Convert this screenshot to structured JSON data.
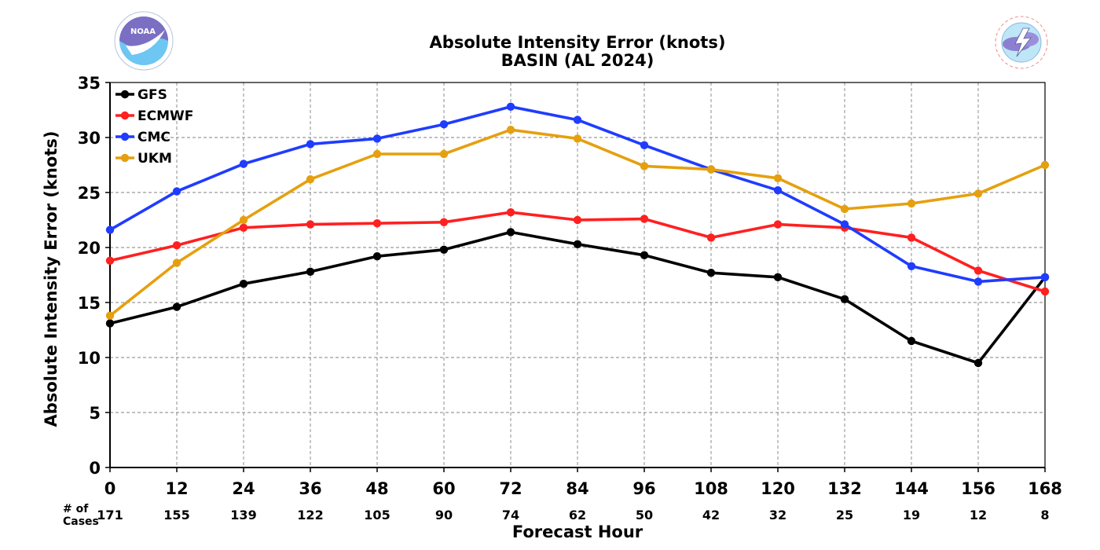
{
  "title": "Absolute Intensity Error (knots)",
  "subtitle": "BASIN (AL 2024)",
  "logos": {
    "left": {
      "icon": "noaa-logo",
      "wordmark": "NOAA",
      "ring_text": "NATIONAL OCEANIC AND ATMOSPHERIC ADMINISTRATION · U.S. DEPARTMENT OF COMMERCE"
    },
    "right": {
      "icon": "nws-logo",
      "ring_text": "NATIONAL WEATHER SERVICE"
    }
  },
  "cases_header_line1": "# of",
  "cases_header_line2": "Cases",
  "chart_data": {
    "type": "line",
    "title": "Absolute Intensity Error (knots)",
    "subtitle": "BASIN (AL 2024)",
    "xlabel": "Forecast Hour",
    "ylabel": "Absolute Intensity Error (knots)",
    "x": [
      0,
      12,
      24,
      36,
      48,
      60,
      72,
      84,
      96,
      108,
      120,
      132,
      144,
      156,
      168
    ],
    "xlim": [
      0,
      168
    ],
    "ylim": [
      0,
      35
    ],
    "yticks": [
      0,
      5,
      10,
      15,
      20,
      25,
      30,
      35
    ],
    "cases": [
      171,
      155,
      139,
      122,
      105,
      90,
      74,
      62,
      50,
      42,
      32,
      25,
      19,
      12,
      8
    ],
    "grid": true,
    "legend_position": "top-left",
    "series": [
      {
        "name": "GFS",
        "color": "#000000",
        "values": [
          13.1,
          14.6,
          16.7,
          17.8,
          19.2,
          19.8,
          21.4,
          20.3,
          19.3,
          17.7,
          17.3,
          15.3,
          11.5,
          9.5,
          17.3
        ]
      },
      {
        "name": "ECMWF",
        "color": "#ff2020",
        "values": [
          18.8,
          20.2,
          21.8,
          22.1,
          22.2,
          22.3,
          23.2,
          22.5,
          22.6,
          20.9,
          22.1,
          21.8,
          20.9,
          17.9,
          16.0
        ]
      },
      {
        "name": "CMC",
        "color": "#1f3cff",
        "values": [
          21.6,
          25.1,
          27.6,
          29.4,
          29.9,
          31.2,
          32.8,
          31.6,
          29.3,
          27.1,
          25.2,
          22.1,
          18.3,
          16.9,
          17.3
        ]
      },
      {
        "name": "UKM",
        "color": "#e5a00f",
        "values": [
          13.8,
          18.6,
          22.5,
          26.2,
          28.5,
          28.5,
          30.7,
          29.9,
          27.4,
          27.1,
          26.3,
          23.5,
          24.0,
          24.9,
          27.5
        ]
      }
    ]
  }
}
